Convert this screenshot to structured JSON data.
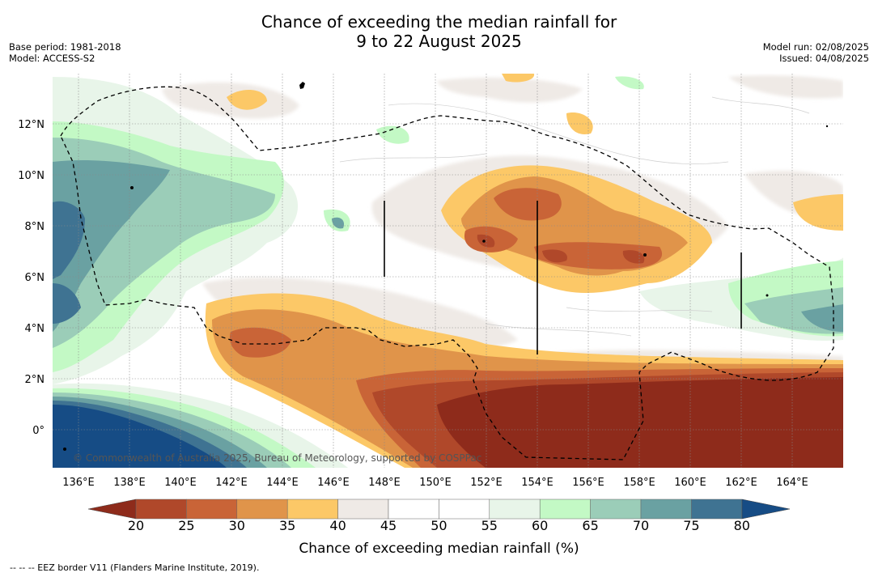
{
  "title": {
    "line1": "Chance of exceeding the median rainfall for",
    "line2": "9 to 22 August 2025"
  },
  "meta_left": {
    "base_period": "Base period: 1981-2018",
    "model": "Model: ACCESS-S2"
  },
  "meta_right": {
    "model_run": "Model run: 02/08/2025",
    "issued": "Issued: 04/08/2025"
  },
  "map": {
    "lon_labels": [
      "136°E",
      "138°E",
      "140°E",
      "142°E",
      "144°E",
      "146°E",
      "148°E",
      "150°E",
      "152°E",
      "154°E",
      "156°E",
      "158°E",
      "160°E",
      "162°E",
      "164°E"
    ],
    "lat_labels": [
      "12°N",
      "10°N",
      "8°N",
      "6°N",
      "4°N",
      "2°N",
      "0°"
    ],
    "copyright": "© Commonwealth of Australia 2025, Bureau of Meteorology, supported by COSPPac"
  },
  "colorbar": {
    "ticks": [
      "20",
      "25",
      "30",
      "35",
      "40",
      "45",
      "50",
      "55",
      "60",
      "65",
      "70",
      "75",
      "80"
    ],
    "colors": {
      "below20": "#8e2b1b",
      "c20_25": "#b0482a",
      "c25_30": "#c96437",
      "c30_35": "#e0944a",
      "c35_40": "#fcc867",
      "c40_45": "#efeae6",
      "c45_50": "#ffffff",
      "c50_55": "#ffffff",
      "c55_60": "#e8f5e9",
      "c60_65": "#c3f9c5",
      "c65_70": "#9bcdb8",
      "c70_75": "#6aa1a2",
      "c75_80": "#3f7392",
      "above80": "#164c85"
    },
    "label": "Chance of exceeding median rainfall (%)"
  },
  "footnote": "--  --  -- EEZ border V11 (Flanders Marine Institute, 2019)."
}
